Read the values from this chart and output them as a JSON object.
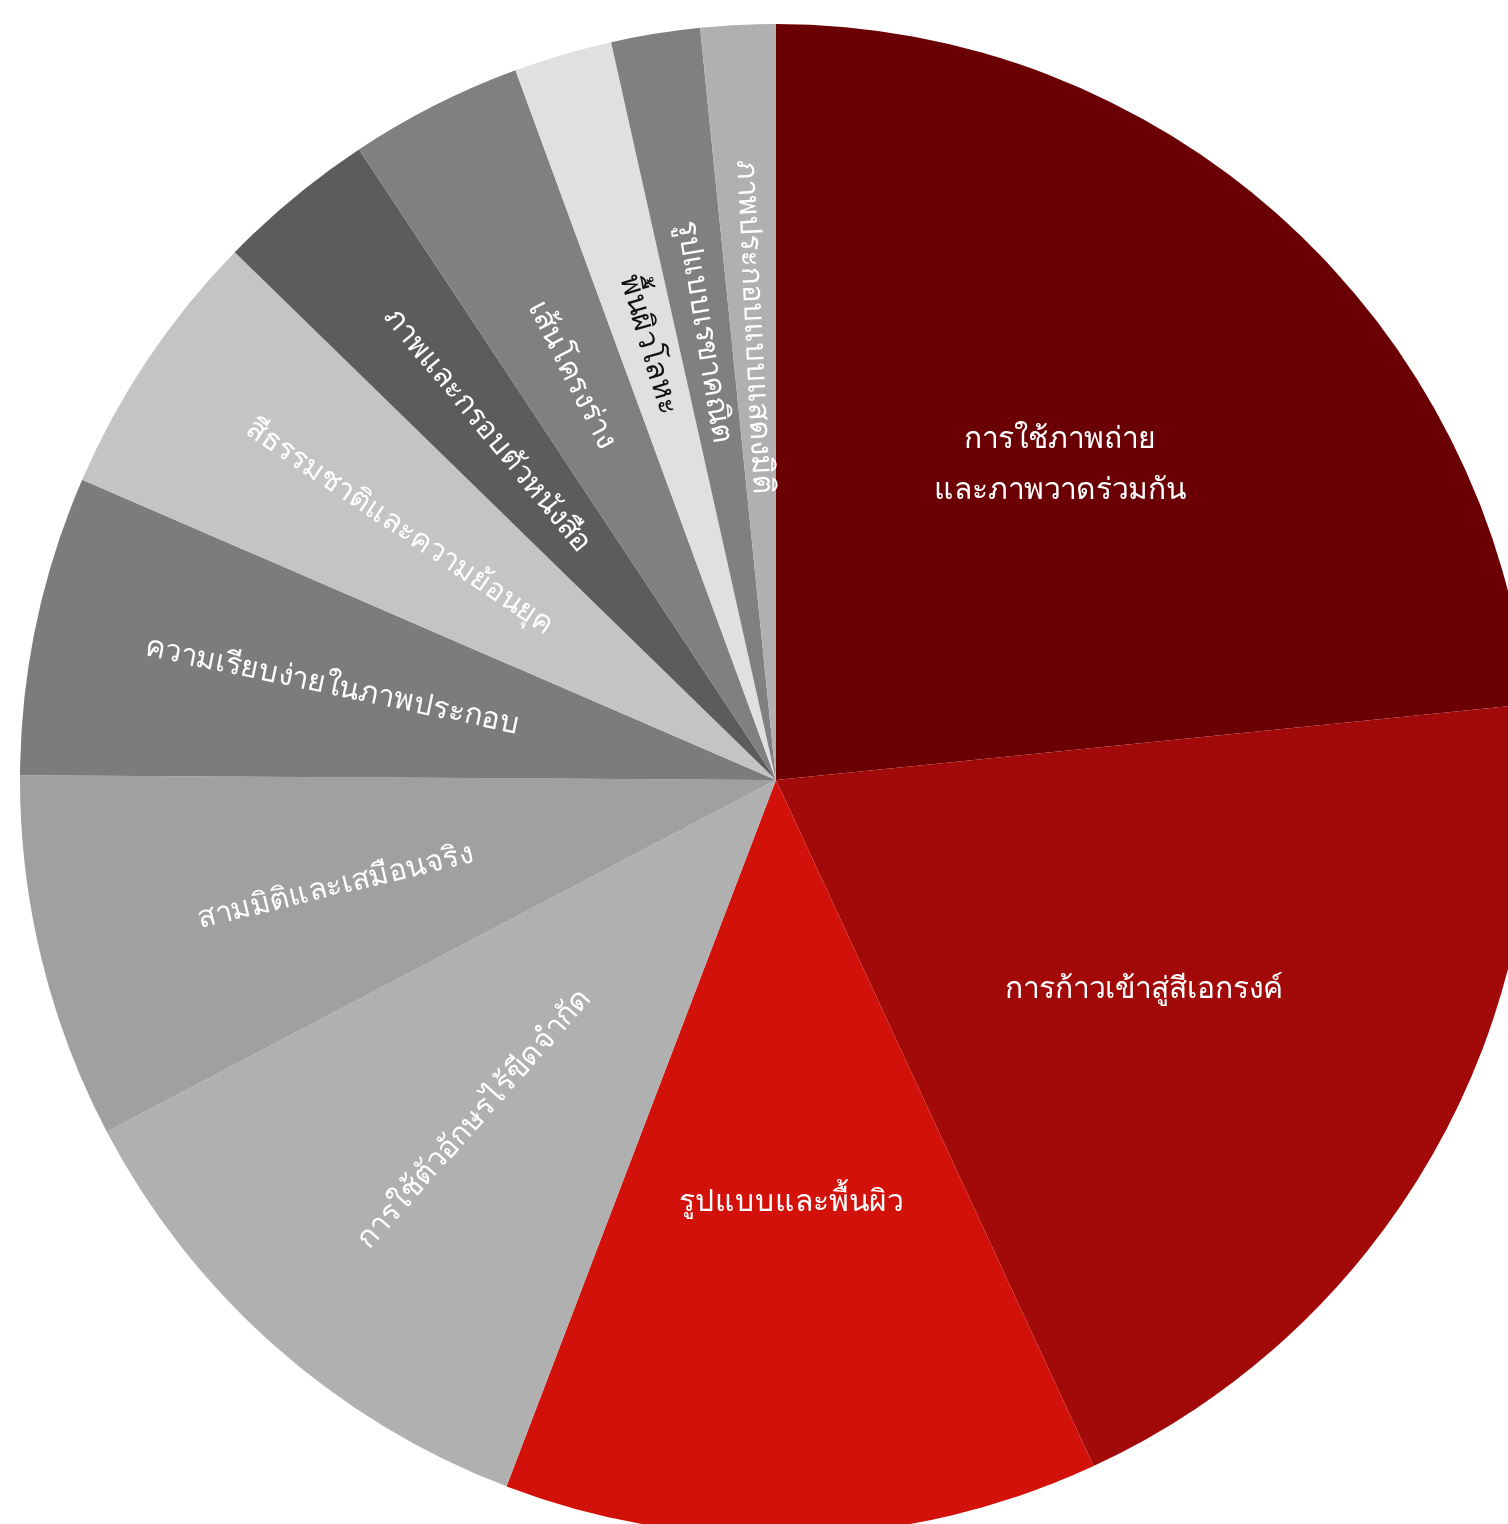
{
  "chart_data": {
    "type": "pie",
    "categories": [
      "การใช้ภาพถ่าย\nและภาพวาดร่วมกัน",
      "การก้าวเข้าสู่สีเอกรงค์",
      "รูปแบบและพื้นผิว",
      "การใช้ตัวอักษรไร้ขีดจำกัด",
      "สามมิติและเสมือนจริง",
      "ความเรียบง่ายในภาพประกอบ",
      "สีธรรมชาติและความย้อนยุค",
      "ภาพและกรอบตัวหนังสือ",
      "เส้นโครงร่าง",
      "พื้นผิวโลหะ",
      "รูปแบบเรขาคณิต",
      "ภาพประกอบแบบแสดงมิติ"
    ],
    "values": [
      23.4,
      19.7,
      12.7,
      11.5,
      7.8,
      6.4,
      5.8,
      3.4,
      3.7,
      2.1,
      1.9,
      1.6
    ],
    "colors": [
      "#6b0004",
      "#a20a0a",
      "#d3110b",
      "#b0b0b0",
      "#a0a0a0",
      "#7c7c7c",
      "#c4c4c4",
      "#5c5c5c",
      "#808080",
      "#e0e0e0",
      "#808080",
      "#b0b0b0"
    ]
  }
}
